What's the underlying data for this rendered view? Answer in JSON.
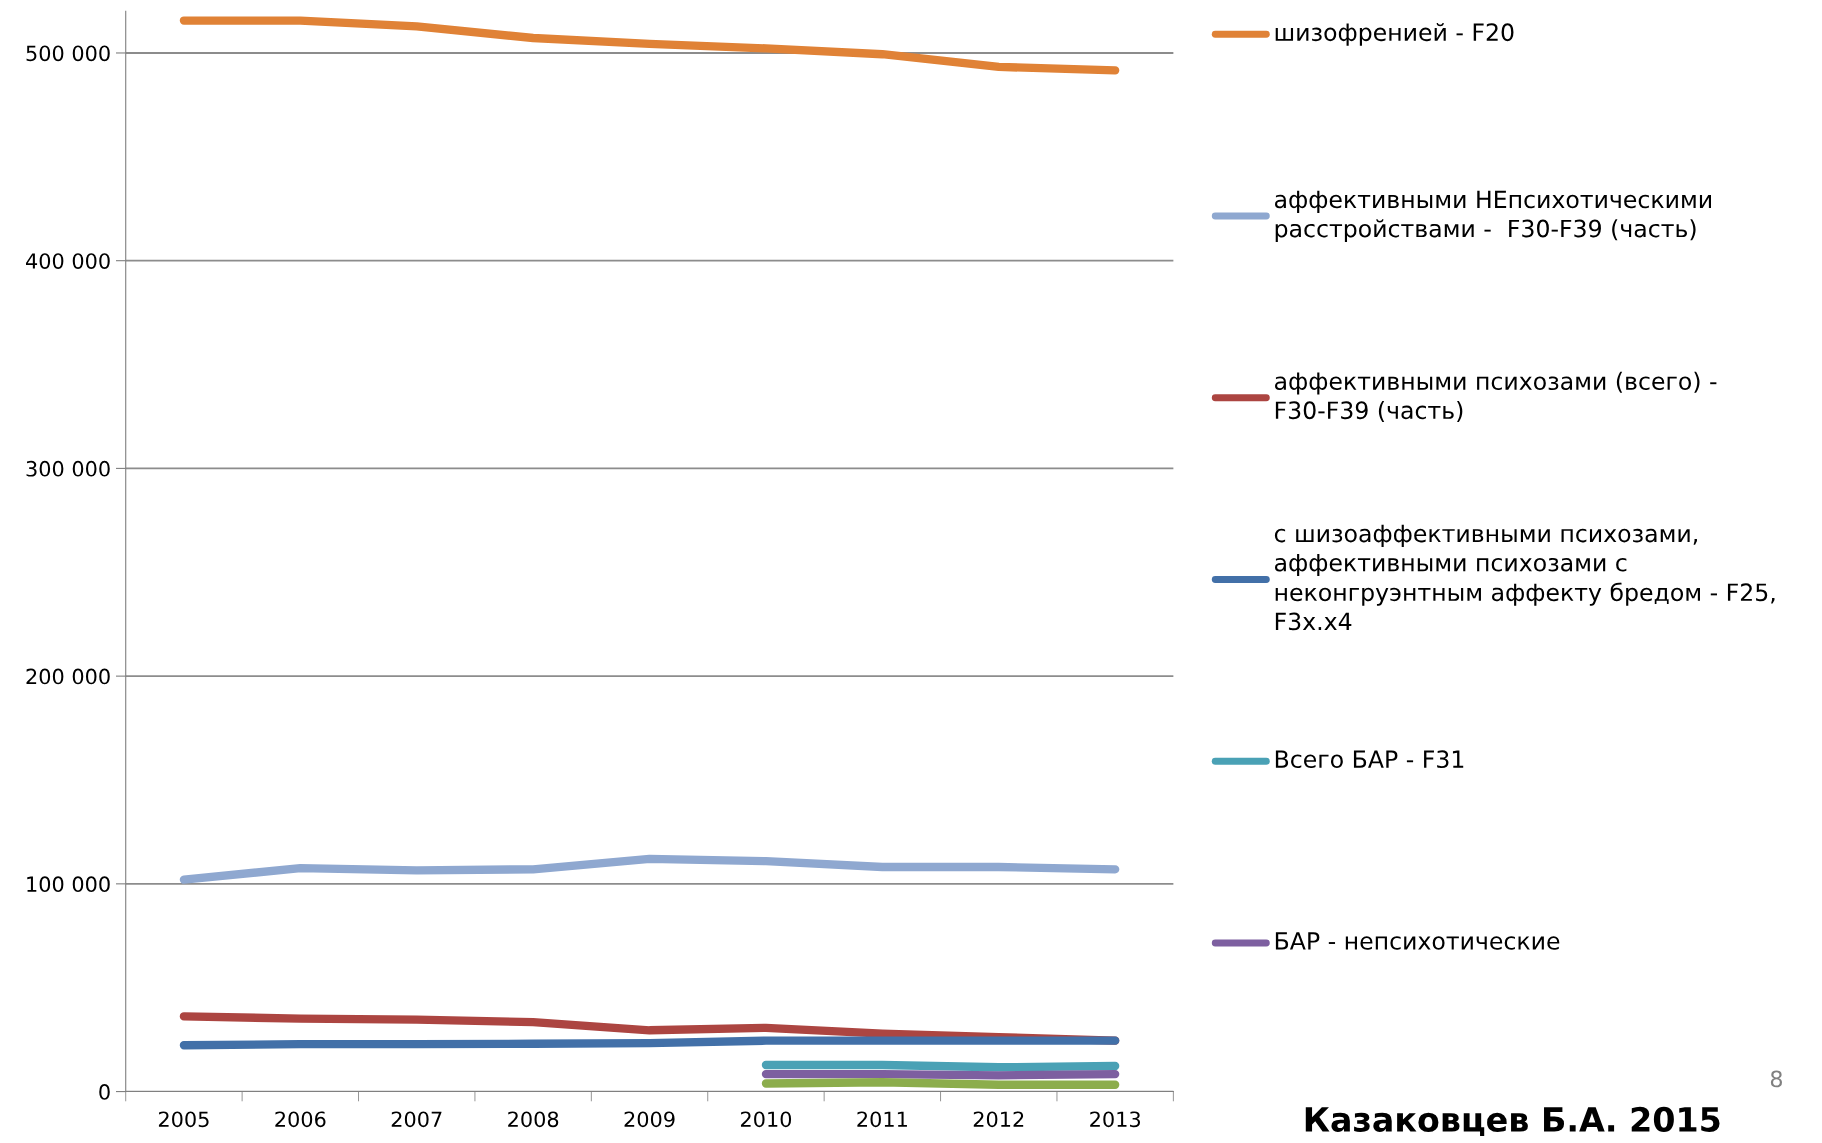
{
  "chart_data": {
    "type": "line",
    "categories": [
      "2005",
      "2006",
      "2007",
      "2008",
      "2009",
      "2010",
      "2011",
      "2012",
      "2013"
    ],
    "series": [
      {
        "name": "шизофренией - F20",
        "color": "#e08236",
        "values": [
          515600,
          515600,
          512800,
          507200,
          504400,
          502200,
          499400,
          493300,
          491600
        ]
      },
      {
        "name": "аффективными НЕпсихотическими расстройствами -  F30-F39 (часть)",
        "color": "#8fa8d0",
        "values": [
          102000,
          107600,
          106500,
          107000,
          112000,
          110900,
          108100,
          108100,
          107000
        ]
      },
      {
        "name": "аффективными психозами (всего) - F30-F39 (часть)",
        "color": "#ac4541",
        "values": [
          36200,
          35100,
          34600,
          33400,
          29500,
          30700,
          27900,
          26200,
          24500
        ]
      },
      {
        "name": "с шизоаффективными психозами, аффективными психозами с неконгруэнтным аффекту бредом - F25, F3x.x4",
        "color": "#4270a8",
        "values": [
          22300,
          22800,
          22800,
          23000,
          23300,
          24500,
          24500,
          24500,
          24500
        ]
      },
      {
        "name": "Всего БАР - F31",
        "color": "#4aa1b5",
        "values": [
          null,
          null,
          null,
          null,
          null,
          12800,
          12800,
          11700,
          12300
        ]
      },
      {
        "name": "БАР - непсихотические",
        "color": "#7d5fa0",
        "values": [
          null,
          null,
          null,
          null,
          null,
          8400,
          8400,
          7800,
          8400
        ]
      },
      {
        "color": "#8cad4c",
        "values": [
          null,
          null,
          null,
          null,
          null,
          3900,
          4500,
          3300,
          3300
        ]
      }
    ],
    "ylim": [
      0,
      520000
    ],
    "yticks": [
      {
        "value": 0,
        "label": "0"
      },
      {
        "value": 100000,
        "label": "100 000"
      },
      {
        "value": 200000,
        "label": "200 000"
      },
      {
        "value": 300000,
        "label": "300 000"
      },
      {
        "value": 400000,
        "label": "400 000"
      },
      {
        "value": 500000,
        "label": "500 000"
      }
    ],
    "grid": "y",
    "legend": "right",
    "marker": "none",
    "line_style": "solid",
    "annotations": [
      "Казаковцев Б.А. 2015",
      "8"
    ]
  }
}
